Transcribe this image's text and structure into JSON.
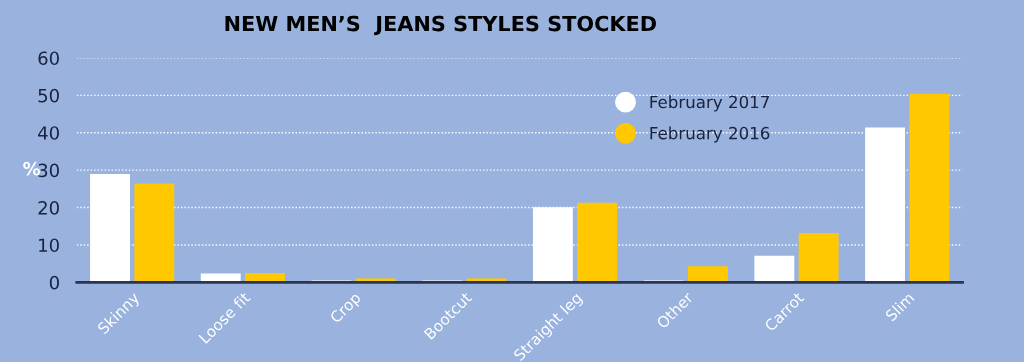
{
  "chart_data": {
    "type": "bar",
    "title": "NEW MEN’S  JEANS STYLES STOCKED",
    "ylabel": "%",
    "categories": [
      "Skinny",
      "Loose fit",
      "Crop",
      "Bootcut",
      "Straight leg",
      "Other",
      "Carrot",
      "Slim"
    ],
    "series": [
      {
        "name": "February 2017",
        "color": "#ffffff",
        "values": [
          29,
          2.4,
          0.5,
          0.5,
          20.1,
          0.5,
          7.1,
          41.4
        ]
      },
      {
        "name": "February 2016",
        "color": "#ffc800",
        "values": [
          26.4,
          2.5,
          1,
          1,
          21.3,
          4.3,
          13.2,
          50.4
        ]
      }
    ],
    "ylim": [
      0,
      60
    ],
    "yticks": [
      0,
      10,
      20,
      30,
      40,
      50,
      60
    ],
    "grid": "y",
    "legend": "top right"
  }
}
